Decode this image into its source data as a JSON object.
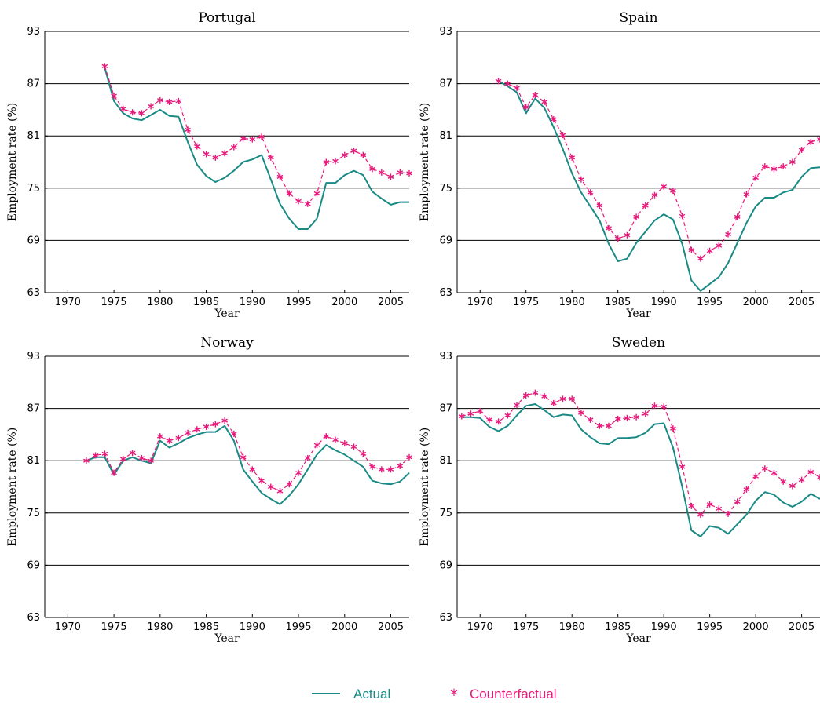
{
  "colors": {
    "actual": "#1a8a86",
    "counterfactual": "#e8197b"
  },
  "legend": {
    "actual_label": "Actual",
    "counterfactual_label": "Counterfactual"
  },
  "chart_data": [
    {
      "type": "line",
      "title": "Portugal",
      "xlabel": "Year",
      "ylabel": "Employment rate (%)",
      "xlim": [
        1967.5,
        2007
      ],
      "ylim": [
        63,
        93
      ],
      "xticks": [
        1970,
        1975,
        1980,
        1985,
        1990,
        1995,
        2000,
        2005
      ],
      "yticks": [
        63,
        69,
        75,
        81,
        87,
        93
      ],
      "grid_y": true,
      "series": [
        {
          "name": "Actual",
          "x": [
            1974,
            1975,
            1976,
            1977,
            1978,
            1979,
            1980,
            1981,
            1982,
            1983,
            1984,
            1985,
            1986,
            1987,
            1988,
            1989,
            1990,
            1991,
            1992,
            1993,
            1994,
            1995,
            1996,
            1997,
            1998,
            1999,
            2000,
            2001,
            2002,
            2003,
            2004,
            2005,
            2006,
            2007
          ],
          "y": [
            88.8,
            85.0,
            83.6,
            83.0,
            82.8,
            83.4,
            84.0,
            83.3,
            83.2,
            80.3,
            77.7,
            76.4,
            75.7,
            76.2,
            77.0,
            78.0,
            78.3,
            78.8,
            76.0,
            73.2,
            71.5,
            70.3,
            70.3,
            71.5,
            75.6,
            75.6,
            76.5,
            77.0,
            76.5,
            74.6,
            73.8,
            73.1,
            73.4,
            73.4
          ]
        },
        {
          "name": "Counterfactual",
          "x": [
            1974,
            1975,
            1976,
            1977,
            1978,
            1979,
            1980,
            1981,
            1982,
            1983,
            1984,
            1985,
            1986,
            1987,
            1988,
            1989,
            1990,
            1991,
            1992,
            1993,
            1994,
            1995,
            1996,
            1997,
            1998,
            1999,
            2000,
            2001,
            2002,
            2003,
            2004,
            2005,
            2006,
            2007
          ],
          "y": [
            89.0,
            85.6,
            84.1,
            83.7,
            83.6,
            84.4,
            85.1,
            84.9,
            85.0,
            81.7,
            79.8,
            78.9,
            78.5,
            79.0,
            79.7,
            80.7,
            80.6,
            80.9,
            78.5,
            76.3,
            74.4,
            73.5,
            73.2,
            74.4,
            78.0,
            78.1,
            78.8,
            79.3,
            78.8,
            77.2,
            76.8,
            76.3,
            76.8,
            76.7
          ]
        }
      ]
    },
    {
      "type": "line",
      "title": "Spain",
      "xlabel": "Year",
      "ylabel": "Employment rate (%)",
      "xlim": [
        1967.5,
        2007
      ],
      "ylim": [
        63,
        93
      ],
      "xticks": [
        1970,
        1975,
        1980,
        1985,
        1990,
        1995,
        2000,
        2005
      ],
      "yticks": [
        63,
        69,
        75,
        81,
        87,
        93
      ],
      "grid_y": true,
      "series": [
        {
          "name": "Actual",
          "x": [
            1972,
            1973,
            1974,
            1975,
            1976,
            1977,
            1978,
            1979,
            1980,
            1981,
            1982,
            1983,
            1984,
            1985,
            1986,
            1987,
            1988,
            1989,
            1990,
            1991,
            1992,
            1993,
            1994,
            1995,
            1996,
            1997,
            1998,
            1999,
            2000,
            2001,
            2002,
            2003,
            2004,
            2005,
            2006,
            2007
          ],
          "y": [
            87.3,
            86.7,
            86.0,
            83.6,
            85.3,
            84.2,
            82.0,
            79.5,
            76.7,
            74.5,
            72.9,
            71.3,
            68.6,
            66.6,
            66.9,
            68.7,
            70.0,
            71.3,
            72.0,
            71.4,
            68.6,
            64.4,
            63.2,
            64.0,
            64.8,
            66.4,
            68.7,
            71.0,
            72.9,
            73.9,
            73.9,
            74.5,
            74.8,
            76.3,
            77.3,
            77.4
          ]
        },
        {
          "name": "Counterfactual",
          "x": [
            1972,
            1973,
            1974,
            1975,
            1976,
            1977,
            1978,
            1979,
            1980,
            1981,
            1982,
            1983,
            1984,
            1985,
            1986,
            1987,
            1988,
            1989,
            1990,
            1991,
            1992,
            1993,
            1994,
            1995,
            1996,
            1997,
            1998,
            1999,
            2000,
            2001,
            2002,
            2003,
            2004,
            2005,
            2006,
            2007
          ],
          "y": [
            87.3,
            87.0,
            86.5,
            84.3,
            85.7,
            84.9,
            82.9,
            81.1,
            78.5,
            76.0,
            74.5,
            73.0,
            70.4,
            69.2,
            69.6,
            71.7,
            73.0,
            74.2,
            75.2,
            74.7,
            71.8,
            67.9,
            66.9,
            67.8,
            68.4,
            69.7,
            71.7,
            74.3,
            76.2,
            77.5,
            77.2,
            77.5,
            78.0,
            79.4,
            80.3,
            80.6
          ]
        }
      ]
    },
    {
      "type": "line",
      "title": "Norway",
      "xlabel": "Year",
      "ylabel": "Employment rate (%)",
      "xlim": [
        1967.5,
        2007
      ],
      "ylim": [
        63,
        93
      ],
      "xticks": [
        1970,
        1975,
        1980,
        1985,
        1990,
        1995,
        2000,
        2005
      ],
      "yticks": [
        63,
        69,
        75,
        81,
        87,
        93
      ],
      "grid_y": true,
      "series": [
        {
          "name": "Actual",
          "x": [
            1972,
            1973,
            1974,
            1975,
            1976,
            1977,
            1978,
            1979,
            1980,
            1981,
            1982,
            1983,
            1984,
            1985,
            1986,
            1987,
            1988,
            1989,
            1990,
            1991,
            1992,
            1993,
            1994,
            1995,
            1996,
            1997,
            1998,
            1999,
            2000,
            2001,
            2002,
            2003,
            2004,
            2005,
            2006,
            2007
          ],
          "y": [
            81.0,
            81.4,
            81.4,
            79.4,
            81.0,
            81.4,
            81.0,
            80.7,
            83.3,
            82.5,
            83.0,
            83.6,
            84.0,
            84.3,
            84.3,
            85.0,
            83.3,
            80.0,
            78.6,
            77.3,
            76.6,
            76.0,
            77.0,
            78.3,
            80.0,
            81.7,
            82.8,
            82.2,
            81.7,
            81.0,
            80.3,
            78.7,
            78.4,
            78.3,
            78.6,
            79.6
          ]
        },
        {
          "name": "Counterfactual",
          "x": [
            1972,
            1973,
            1974,
            1975,
            1976,
            1977,
            1978,
            1979,
            1980,
            1981,
            1982,
            1983,
            1984,
            1985,
            1986,
            1987,
            1988,
            1989,
            1990,
            1991,
            1992,
            1993,
            1994,
            1995,
            1996,
            1997,
            1998,
            1999,
            2000,
            2001,
            2002,
            2003,
            2004,
            2005,
            2006,
            2007
          ],
          "y": [
            81.0,
            81.6,
            81.8,
            79.6,
            81.2,
            81.9,
            81.3,
            81.0,
            83.8,
            83.3,
            83.6,
            84.2,
            84.6,
            84.9,
            85.2,
            85.6,
            84.1,
            81.4,
            80.0,
            78.7,
            78.0,
            77.5,
            78.3,
            79.6,
            81.3,
            82.8,
            83.8,
            83.4,
            83.0,
            82.6,
            81.8,
            80.3,
            80.0,
            80.0,
            80.4,
            81.4
          ]
        }
      ]
    },
    {
      "type": "line",
      "title": "Sweden",
      "xlabel": "Year",
      "ylabel": "Employment rate (%)",
      "xlim": [
        1967.5,
        2007
      ],
      "ylim": [
        63,
        93
      ],
      "xticks": [
        1970,
        1975,
        1980,
        1985,
        1990,
        1995,
        2000,
        2005
      ],
      "yticks": [
        63,
        69,
        75,
        81,
        87,
        93
      ],
      "grid_y": true,
      "series": [
        {
          "name": "Actual",
          "x": [
            1968,
            1969,
            1970,
            1971,
            1972,
            1973,
            1974,
            1975,
            1976,
            1977,
            1978,
            1979,
            1980,
            1981,
            1982,
            1983,
            1984,
            1985,
            1986,
            1987,
            1988,
            1989,
            1990,
            1991,
            1992,
            1993,
            1994,
            1995,
            1996,
            1997,
            1998,
            1999,
            2000,
            2001,
            2002,
            2003,
            2004,
            2005,
            2006,
            2007
          ],
          "y": [
            86.0,
            86.0,
            85.9,
            84.9,
            84.4,
            85.0,
            86.2,
            87.3,
            87.5,
            86.8,
            86.0,
            86.3,
            86.2,
            84.6,
            83.7,
            83.0,
            82.9,
            83.6,
            83.6,
            83.7,
            84.2,
            85.2,
            85.3,
            82.5,
            78.0,
            73.0,
            72.3,
            73.5,
            73.3,
            72.6,
            73.7,
            74.8,
            76.4,
            77.4,
            77.1,
            76.2,
            75.7,
            76.3,
            77.2,
            76.6
          ]
        },
        {
          "name": "Counterfactual",
          "x": [
            1968,
            1969,
            1970,
            1971,
            1972,
            1973,
            1974,
            1975,
            1976,
            1977,
            1978,
            1979,
            1980,
            1981,
            1982,
            1983,
            1984,
            1985,
            1986,
            1987,
            1988,
            1989,
            1990,
            1991,
            1992,
            1993,
            1994,
            1995,
            1996,
            1997,
            1998,
            1999,
            2000,
            2001,
            2002,
            2003,
            2004,
            2005,
            2006,
            2007
          ],
          "y": [
            86.1,
            86.4,
            86.7,
            85.7,
            85.5,
            86.2,
            87.4,
            88.5,
            88.8,
            88.4,
            87.6,
            88.1,
            88.1,
            86.5,
            85.7,
            85.0,
            85.0,
            85.8,
            85.9,
            86.0,
            86.4,
            87.3,
            87.2,
            84.7,
            80.3,
            75.8,
            74.8,
            76.0,
            75.5,
            74.9,
            76.3,
            77.7,
            79.2,
            80.1,
            79.6,
            78.6,
            78.1,
            78.8,
            79.7,
            79.1
          ]
        }
      ]
    }
  ]
}
